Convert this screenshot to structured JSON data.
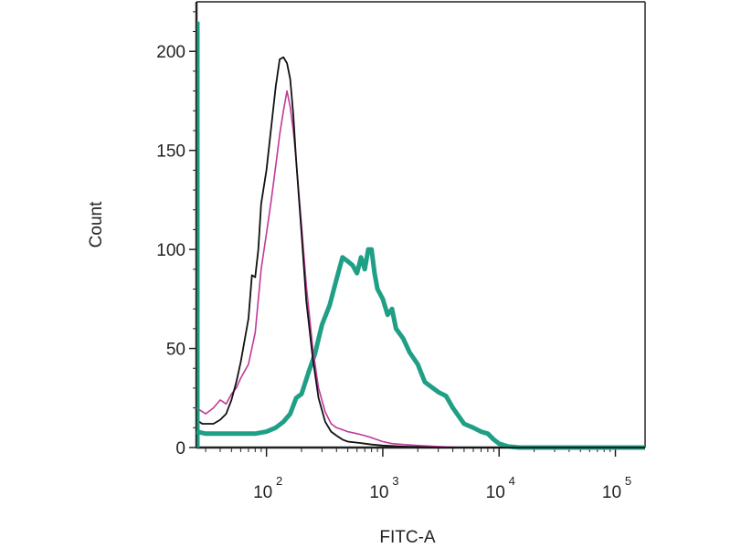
{
  "chart_data": {
    "type": "line",
    "xlabel": "FITC-A",
    "ylabel": "Count",
    "x_scale": "log",
    "xlim": [
      25,
      180000
    ],
    "ylim": [
      0,
      225
    ],
    "yticks": [
      {
        "value": 0,
        "label": "0"
      },
      {
        "value": 50,
        "label": "50"
      },
      {
        "value": 100,
        "label": "100"
      },
      {
        "value": 150,
        "label": "150"
      },
      {
        "value": 200,
        "label": "200"
      }
    ],
    "xticks": [
      {
        "value": 100,
        "base": "10",
        "exp": "2"
      },
      {
        "value": 1000,
        "base": "10",
        "exp": "3"
      },
      {
        "value": 10000,
        "base": "10",
        "exp": "4"
      },
      {
        "value": 100000,
        "base": "10",
        "exp": "5"
      }
    ],
    "grid": false,
    "legend": "none",
    "series": [
      {
        "color": "#c0399a",
        "x": [
          25,
          30,
          35,
          40,
          45,
          50,
          55,
          60,
          70,
          80,
          90,
          100,
          110,
          120,
          130,
          140,
          150,
          160,
          170,
          180,
          200,
          220,
          250,
          280,
          320,
          360,
          400,
          450,
          500,
          600,
          700,
          800,
          1000,
          1200,
          1500,
          2000,
          3000,
          5000,
          10000,
          180000
        ],
        "y": [
          20,
          17,
          20,
          24,
          22,
          27,
          30,
          35,
          42,
          58,
          90,
          108,
          125,
          142,
          158,
          170,
          180,
          172,
          160,
          145,
          112,
          82,
          50,
          30,
          18,
          12,
          10,
          9,
          8,
          7,
          6,
          5,
          3,
          2,
          1.5,
          1,
          0.5,
          0,
          0,
          0
        ]
      },
      {
        "color": "#111111",
        "x": [
          25,
          28,
          30,
          35,
          40,
          45,
          50,
          55,
          60,
          70,
          75,
          80,
          85,
          90,
          100,
          110,
          120,
          130,
          140,
          150,
          160,
          170,
          180,
          200,
          220,
          250,
          280,
          320,
          360,
          400,
          450,
          500,
          600,
          700,
          800,
          1000,
          1500,
          3000,
          180000
        ],
        "y": [
          14,
          12,
          12,
          12,
          14,
          17,
          24,
          33,
          43,
          65,
          87,
          86,
          100,
          123,
          140,
          162,
          182,
          196,
          197,
          194,
          186,
          168,
          145,
          108,
          74,
          45,
          25,
          13,
          8,
          6,
          4,
          3,
          2.5,
          2,
          1.5,
          1,
          0.5,
          0,
          0
        ]
      },
      {
        "color": "#1f9f85",
        "x": [
          25,
          30,
          40,
          50,
          60,
          80,
          100,
          120,
          140,
          160,
          180,
          200,
          230,
          260,
          300,
          350,
          400,
          450,
          500,
          550,
          600,
          650,
          700,
          750,
          800,
          850,
          900,
          1000,
          1100,
          1200,
          1300,
          1500,
          1700,
          2000,
          2300,
          2700,
          3000,
          3500,
          4000,
          5000,
          6000,
          7000,
          8000,
          9000,
          10000,
          12000,
          15000,
          20000,
          180000
        ],
        "y": [
          8,
          7,
          7,
          7,
          7,
          7,
          8,
          10,
          13,
          17,
          25,
          27,
          38,
          47,
          62,
          72,
          85,
          96,
          94,
          92,
          88,
          96,
          90,
          100,
          100,
          88,
          80,
          75,
          67,
          70,
          60,
          55,
          48,
          42,
          33,
          30,
          28,
          26,
          20,
          12,
          10,
          8,
          7,
          4,
          2,
          0.5,
          0,
          0,
          0
        ]
      }
    ]
  }
}
